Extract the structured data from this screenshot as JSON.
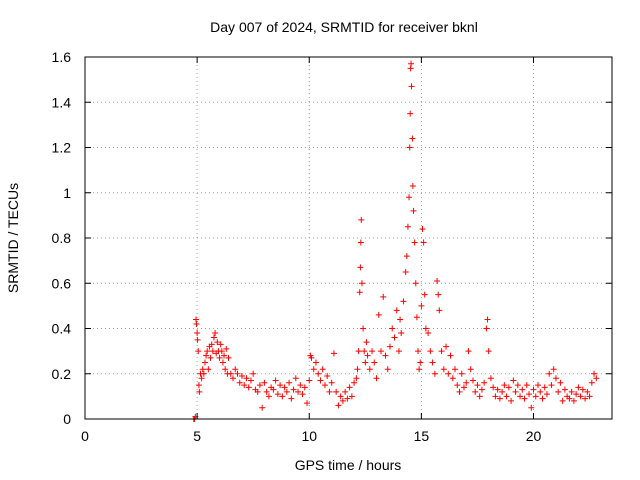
{
  "chart_data": {
    "type": "scatter",
    "title": "Day 007 of 2024, SRMTID for receiver bknl",
    "xlabel": "GPS time / hours",
    "ylabel": "SRMTID / TECUs",
    "xlim": [
      0,
      23.5
    ],
    "ylim": [
      0,
      1.6
    ],
    "x_ticks": [
      0,
      5,
      10,
      15,
      20
    ],
    "x_tick_labels": [
      "0",
      "5",
      "10",
      "15",
      "20"
    ],
    "y_ticks": [
      0,
      0.2,
      0.4,
      0.6,
      0.8,
      1.0,
      1.2,
      1.4,
      1.6
    ],
    "y_tick_labels": [
      "0",
      "0.2",
      "0.4",
      "0.6",
      "0.8",
      "1",
      "1.2",
      "1.4",
      "1.6"
    ],
    "grid": true,
    "marker": "+",
    "marker_color": "#ff0000",
    "series": [
      {
        "name": "SRMTID",
        "points": [
          [
            4.85,
            0.0
          ],
          [
            4.88,
            0.0
          ],
          [
            4.92,
            0.01
          ],
          [
            4.95,
            0.44
          ],
          [
            4.97,
            0.42
          ],
          [
            5.0,
            0.38
          ],
          [
            5.02,
            0.35
          ],
          [
            5.05,
            0.3
          ],
          [
            5.08,
            0.15
          ],
          [
            5.1,
            0.12
          ],
          [
            5.15,
            0.2
          ],
          [
            5.2,
            0.18
          ],
          [
            5.25,
            0.22
          ],
          [
            5.3,
            0.2
          ],
          [
            5.35,
            0.25
          ],
          [
            5.4,
            0.28
          ],
          [
            5.45,
            0.3
          ],
          [
            5.5,
            0.22
          ],
          [
            5.55,
            0.32
          ],
          [
            5.6,
            0.27
          ],
          [
            5.65,
            0.33
          ],
          [
            5.7,
            0.3
          ],
          [
            5.75,
            0.36
          ],
          [
            5.8,
            0.38
          ],
          [
            5.85,
            0.29
          ],
          [
            5.9,
            0.34
          ],
          [
            5.95,
            0.3
          ],
          [
            6.0,
            0.27
          ],
          [
            6.05,
            0.33
          ],
          [
            6.1,
            0.3
          ],
          [
            6.15,
            0.25
          ],
          [
            6.2,
            0.28
          ],
          [
            6.25,
            0.22
          ],
          [
            6.3,
            0.31
          ],
          [
            6.35,
            0.2
          ],
          [
            6.4,
            0.27
          ],
          [
            6.5,
            0.2
          ],
          [
            6.6,
            0.18
          ],
          [
            6.7,
            0.22
          ],
          [
            6.8,
            0.2
          ],
          [
            6.9,
            0.16
          ],
          [
            7.0,
            0.19
          ],
          [
            7.1,
            0.15
          ],
          [
            7.2,
            0.18
          ],
          [
            7.3,
            0.14
          ],
          [
            7.4,
            0.17
          ],
          [
            7.5,
            0.2
          ],
          [
            7.6,
            0.13
          ],
          [
            7.7,
            0.12
          ],
          [
            7.8,
            0.15
          ],
          [
            7.9,
            0.05
          ],
          [
            8.0,
            0.16
          ],
          [
            8.1,
            0.12
          ],
          [
            8.2,
            0.1
          ],
          [
            8.3,
            0.14
          ],
          [
            8.4,
            0.13
          ],
          [
            8.5,
            0.17
          ],
          [
            8.6,
            0.11
          ],
          [
            8.7,
            0.15
          ],
          [
            8.8,
            0.1
          ],
          [
            8.9,
            0.14
          ],
          [
            9.0,
            0.12
          ],
          [
            9.1,
            0.16
          ],
          [
            9.2,
            0.09
          ],
          [
            9.3,
            0.13
          ],
          [
            9.4,
            0.18
          ],
          [
            9.5,
            0.12
          ],
          [
            9.6,
            0.15
          ],
          [
            9.7,
            0.11
          ],
          [
            9.8,
            0.14
          ],
          [
            9.9,
            0.07
          ],
          [
            10.0,
            0.17
          ],
          [
            10.05,
            0.28
          ],
          [
            10.1,
            0.27
          ],
          [
            10.2,
            0.22
          ],
          [
            10.3,
            0.25
          ],
          [
            10.4,
            0.2
          ],
          [
            10.5,
            0.17
          ],
          [
            10.6,
            0.22
          ],
          [
            10.7,
            0.15
          ],
          [
            10.8,
            0.19
          ],
          [
            10.9,
            0.12
          ],
          [
            11.0,
            0.16
          ],
          [
            11.1,
            0.29
          ],
          [
            11.2,
            0.12
          ],
          [
            11.3,
            0.06
          ],
          [
            11.4,
            0.1
          ],
          [
            11.5,
            0.08
          ],
          [
            11.6,
            0.12
          ],
          [
            11.7,
            0.09
          ],
          [
            11.8,
            0.14
          ],
          [
            11.9,
            0.1
          ],
          [
            12.0,
            0.16
          ],
          [
            12.1,
            0.18
          ],
          [
            12.15,
            0.22
          ],
          [
            12.2,
            0.3
          ],
          [
            12.25,
            0.56
          ],
          [
            12.28,
            0.67
          ],
          [
            12.3,
            0.78
          ],
          [
            12.32,
            0.88
          ],
          [
            12.35,
            0.6
          ],
          [
            12.4,
            0.4
          ],
          [
            12.45,
            0.3
          ],
          [
            12.5,
            0.25
          ],
          [
            12.55,
            0.34
          ],
          [
            12.6,
            0.28
          ],
          [
            12.7,
            0.22
          ],
          [
            12.8,
            0.3
          ],
          [
            12.9,
            0.25
          ],
          [
            13.0,
            0.18
          ],
          [
            13.1,
            0.46
          ],
          [
            13.2,
            0.3
          ],
          [
            13.3,
            0.54
          ],
          [
            13.4,
            0.28
          ],
          [
            13.5,
            0.22
          ],
          [
            13.6,
            0.32
          ],
          [
            13.7,
            0.4
          ],
          [
            13.8,
            0.36
          ],
          [
            13.9,
            0.48
          ],
          [
            14.0,
            0.3
          ],
          [
            14.05,
            0.44
          ],
          [
            14.1,
            0.38
          ],
          [
            14.2,
            0.52
          ],
          [
            14.3,
            0.65
          ],
          [
            14.35,
            0.72
          ],
          [
            14.4,
            0.85
          ],
          [
            14.45,
            0.98
          ],
          [
            14.48,
            1.2
          ],
          [
            14.5,
            1.35
          ],
          [
            14.52,
            1.55
          ],
          [
            14.54,
            1.57
          ],
          [
            14.56,
            1.47
          ],
          [
            14.6,
            1.24
          ],
          [
            14.62,
            1.03
          ],
          [
            14.65,
            0.92
          ],
          [
            14.7,
            0.78
          ],
          [
            14.75,
            0.6
          ],
          [
            14.8,
            0.45
          ],
          [
            14.85,
            0.3
          ],
          [
            14.9,
            0.22
          ],
          [
            14.95,
            0.25
          ],
          [
            15.0,
            0.5
          ],
          [
            15.05,
            0.84
          ],
          [
            15.1,
            0.78
          ],
          [
            15.15,
            0.55
          ],
          [
            15.2,
            0.4
          ],
          [
            15.3,
            0.38
          ],
          [
            15.4,
            0.3
          ],
          [
            15.5,
            0.25
          ],
          [
            15.6,
            0.2
          ],
          [
            15.7,
            0.61
          ],
          [
            15.75,
            0.55
          ],
          [
            15.8,
            0.48
          ],
          [
            15.9,
            0.3
          ],
          [
            16.0,
            0.22
          ],
          [
            16.1,
            0.32
          ],
          [
            16.2,
            0.2
          ],
          [
            16.3,
            0.28
          ],
          [
            16.4,
            0.18
          ],
          [
            16.5,
            0.22
          ],
          [
            16.6,
            0.15
          ],
          [
            16.7,
            0.12
          ],
          [
            16.8,
            0.2
          ],
          [
            16.9,
            0.14
          ],
          [
            17.0,
            0.16
          ],
          [
            17.1,
            0.3
          ],
          [
            17.2,
            0.22
          ],
          [
            17.3,
            0.17
          ],
          [
            17.4,
            0.12
          ],
          [
            17.5,
            0.15
          ],
          [
            17.6,
            0.1
          ],
          [
            17.7,
            0.13
          ],
          [
            17.8,
            0.16
          ],
          [
            17.9,
            0.4
          ],
          [
            17.95,
            0.44
          ],
          [
            18.0,
            0.3
          ],
          [
            18.1,
            0.18
          ],
          [
            18.2,
            0.14
          ],
          [
            18.3,
            0.1
          ],
          [
            18.4,
            0.13
          ],
          [
            18.5,
            0.09
          ],
          [
            18.6,
            0.12
          ],
          [
            18.7,
            0.15
          ],
          [
            18.8,
            0.1
          ],
          [
            18.9,
            0.14
          ],
          [
            19.0,
            0.08
          ],
          [
            19.1,
            0.17
          ],
          [
            19.2,
            0.12
          ],
          [
            19.3,
            0.15
          ],
          [
            19.4,
            0.1
          ],
          [
            19.5,
            0.13
          ],
          [
            19.6,
            0.09
          ],
          [
            19.7,
            0.15
          ],
          [
            19.8,
            0.11
          ],
          [
            19.9,
            0.05
          ],
          [
            20.0,
            0.13
          ],
          [
            20.1,
            0.1
          ],
          [
            20.2,
            0.15
          ],
          [
            20.3,
            0.12
          ],
          [
            20.4,
            0.09
          ],
          [
            20.5,
            0.14
          ],
          [
            20.6,
            0.11
          ],
          [
            20.7,
            0.2
          ],
          [
            20.8,
            0.15
          ],
          [
            20.9,
            0.22
          ],
          [
            21.0,
            0.18
          ],
          [
            21.1,
            0.12
          ],
          [
            21.2,
            0.16
          ],
          [
            21.3,
            0.08
          ],
          [
            21.4,
            0.13
          ],
          [
            21.5,
            0.1
          ],
          [
            21.6,
            0.09
          ],
          [
            21.7,
            0.12
          ],
          [
            21.8,
            0.08
          ],
          [
            21.9,
            0.11
          ],
          [
            22.0,
            0.14
          ],
          [
            22.1,
            0.1
          ],
          [
            22.2,
            0.13
          ],
          [
            22.3,
            0.09
          ],
          [
            22.4,
            0.12
          ],
          [
            22.5,
            0.1
          ],
          [
            22.6,
            0.16
          ],
          [
            22.7,
            0.2
          ],
          [
            22.8,
            0.18
          ]
        ]
      }
    ]
  }
}
